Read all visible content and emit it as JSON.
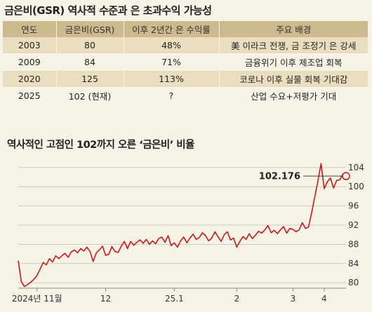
{
  "title": "금은비(GSR) 역사적 수준과 은 초과수익 가능성",
  "table": {
    "headers": [
      "연도",
      "금은비(GSR)",
      "이후 2년간 은 수익률",
      "주요 배경"
    ],
    "rows": [
      [
        "2003",
        "80",
        "48%",
        "美 이라크 전쟁, 금 조정기 은 강세"
      ],
      [
        "2009",
        "84",
        "71%",
        "금융위기 이후 제조업 회복"
      ],
      [
        "2020",
        "125",
        "113%",
        "코로나 이후 실물 회복 기대감"
      ],
      [
        "2025",
        "102 (현재)",
        "?",
        "산업 수요+저평가 기대"
      ]
    ]
  },
  "chart_title": "역사적인 고점인 102까지 오른 ‘금은비’ 비율",
  "colors": {
    "line": "#c41a1a",
    "grid": "#bdbdbd",
    "header": "#cdb98e",
    "band": "#ebdec0",
    "background": "#f7f2e6"
  },
  "chart_data": {
    "type": "line",
    "x_tick_labels": [
      "2024년 11월",
      "12",
      "25.1",
      "2",
      "3",
      "4"
    ],
    "ylim": [
      79,
      105
    ],
    "y_ticks": [
      80,
      84,
      88,
      92,
      96,
      100,
      104
    ],
    "grid": "horizontal",
    "last_value_label": "102.176",
    "series": [
      {
        "values": [
          84.6,
          80.2,
          79.2,
          79.6,
          80.1,
          80.7,
          81.5,
          82.8,
          84.2,
          83.7,
          85.0,
          84.3,
          85.6,
          85.0,
          85.6,
          86.1,
          85.3,
          86.4,
          86.8,
          86.2,
          87.1,
          86.6,
          87.4,
          86.5,
          84.4,
          86.2,
          86.8,
          87.6,
          85.7,
          85.9,
          87.5,
          86.5,
          86.3,
          87.6,
          88.6,
          87.1,
          88.6,
          87.8,
          88.4,
          88.9,
          88.2,
          89.0,
          88.0,
          88.7,
          88.1,
          89.2,
          89.5,
          88.4,
          89.8,
          87.7,
          88.3,
          87.4,
          88.7,
          89.5,
          88.3,
          89.3,
          90.1,
          89.0,
          89.4,
          90.4,
          89.8,
          88.7,
          89.3,
          90.6,
          89.6,
          88.6,
          90.0,
          90.6,
          88.9,
          89.3,
          87.4,
          88.6,
          89.6,
          89.0,
          90.2,
          89.2,
          89.9,
          90.7,
          90.3,
          91.0,
          91.9,
          90.4,
          90.9,
          90.2,
          91.0,
          91.7,
          90.3,
          91.3,
          91.1,
          90.6,
          91.0,
          92.5,
          91.3,
          91.6,
          94.6,
          97.9,
          101.2,
          104.8,
          99.6,
          101.0,
          101.8,
          99.7,
          101.3,
          101.4,
          102.6,
          102.2
        ]
      }
    ]
  }
}
